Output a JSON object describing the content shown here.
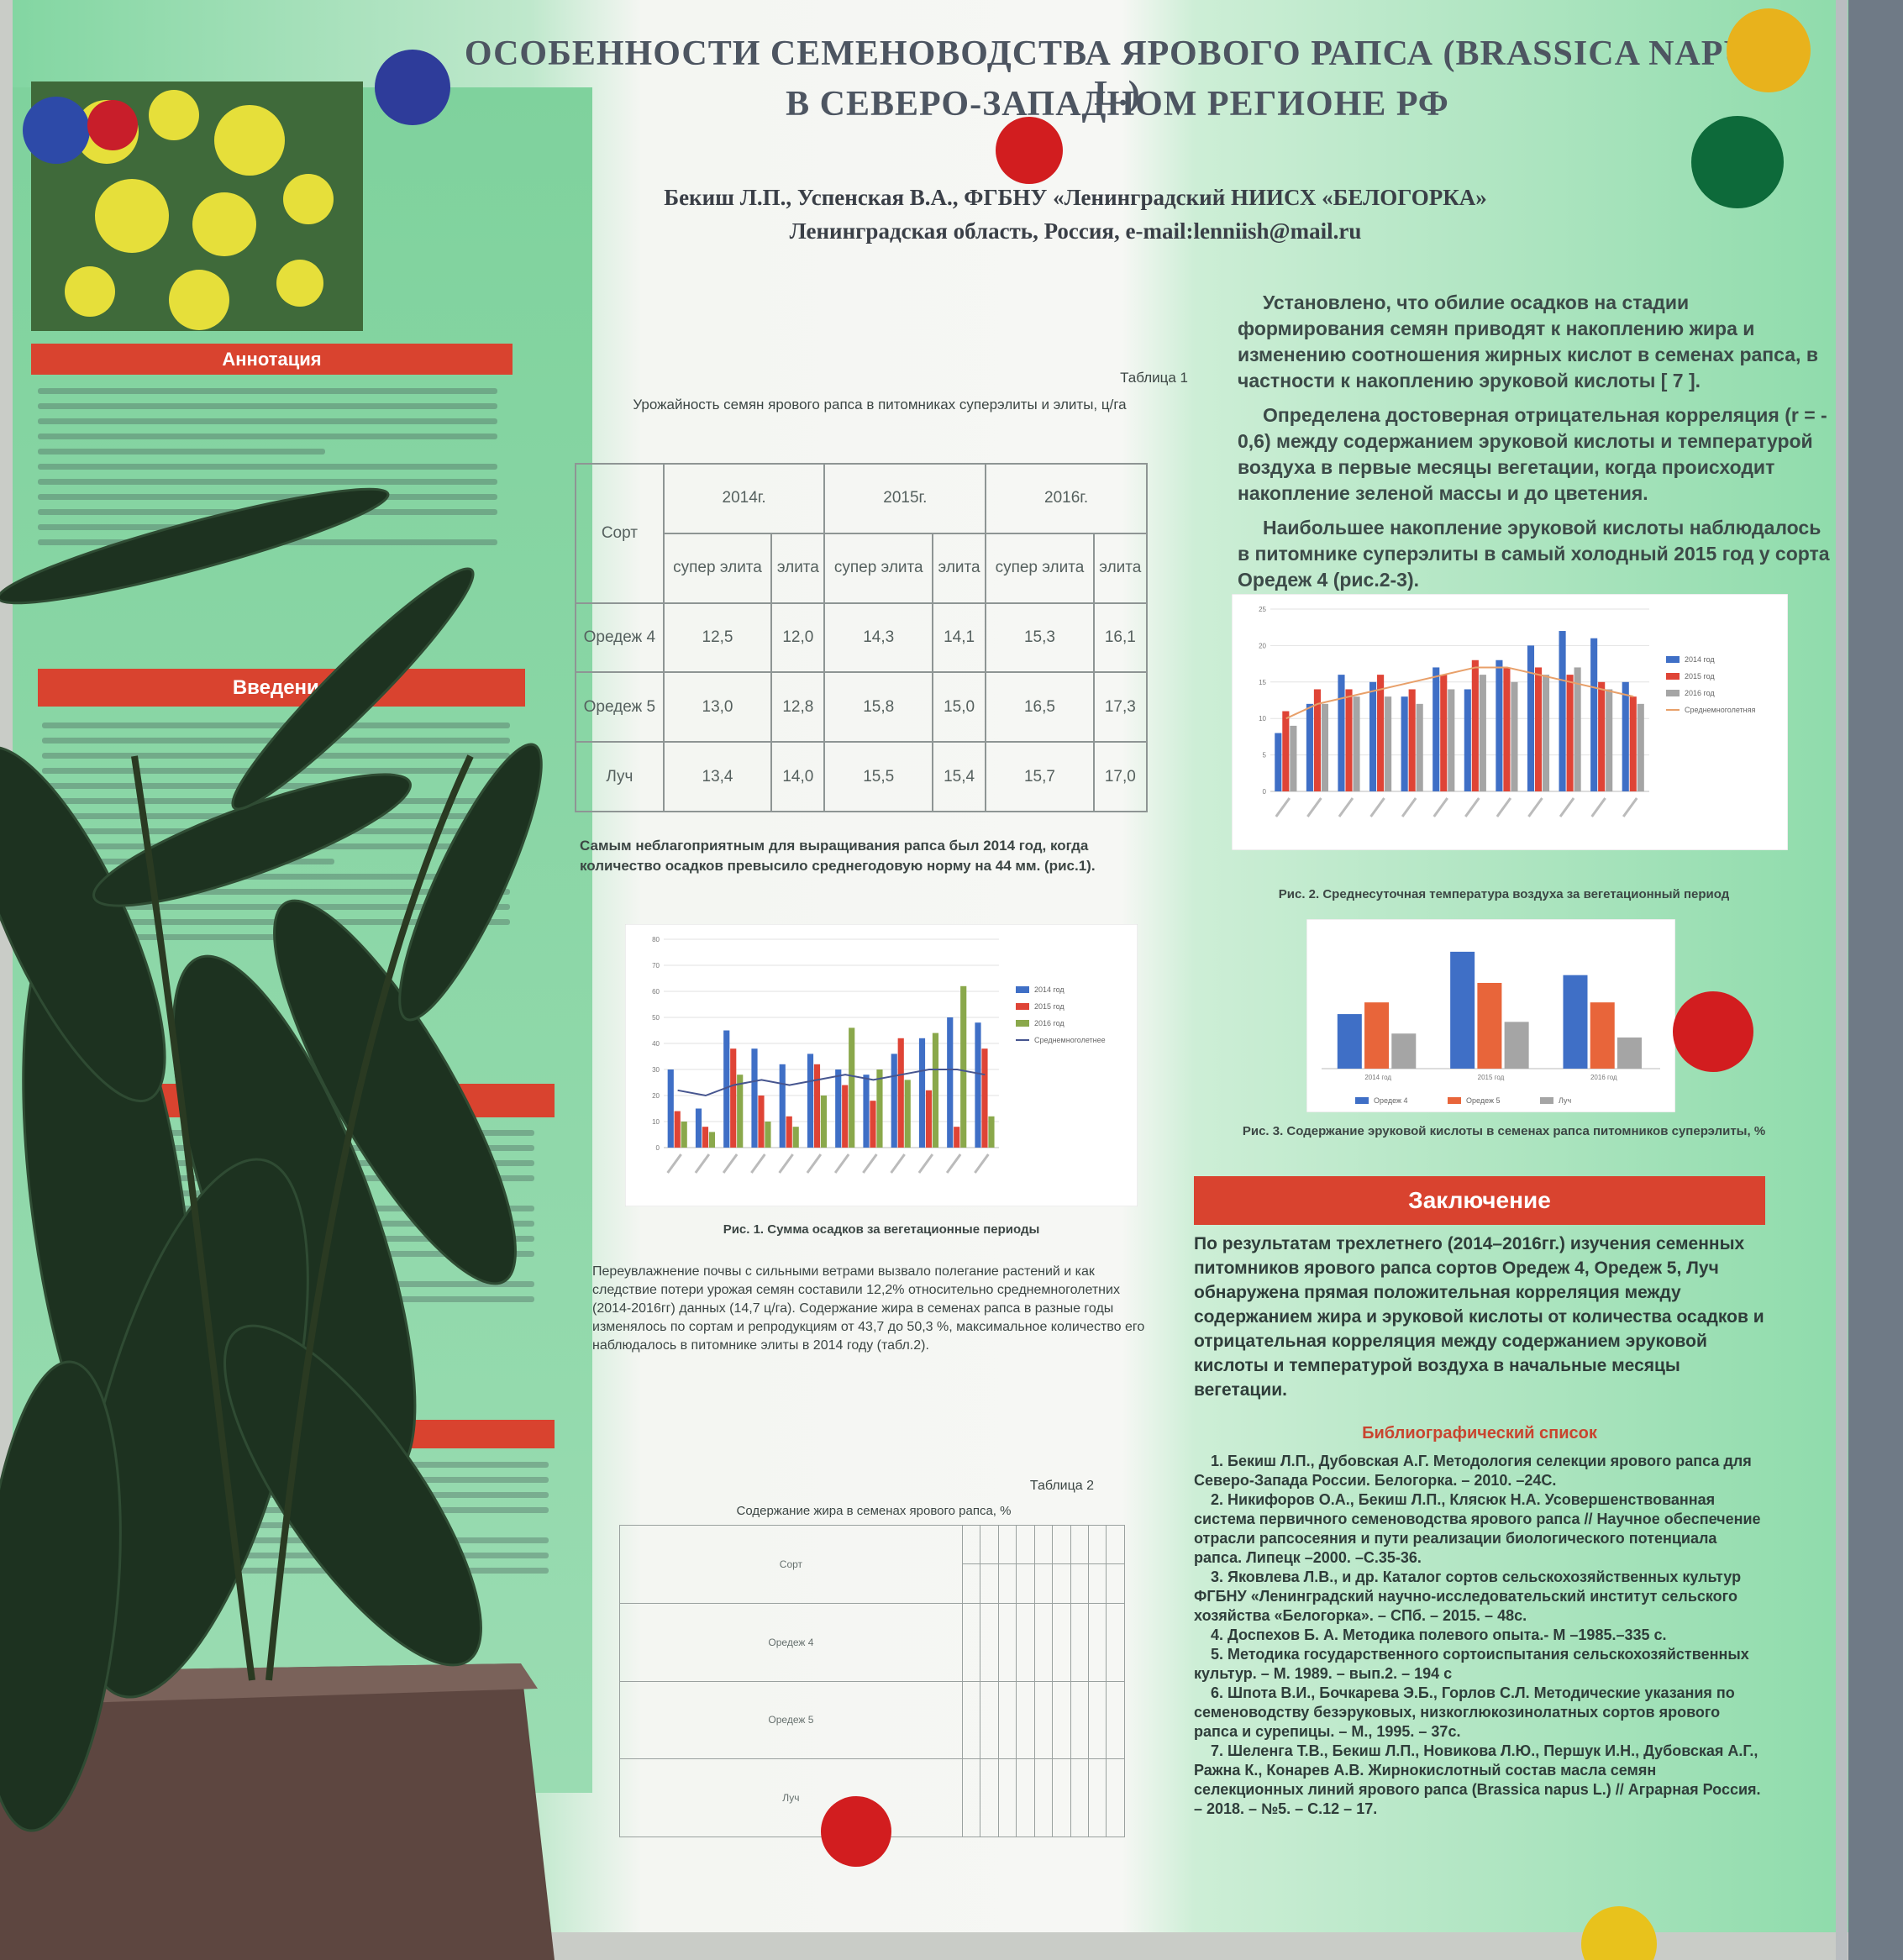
{
  "poster": {
    "title": [
      "ОСОБЕННОСТИ СЕМЕНОВОДСТВА ЯРОВОГО РАПСА  (BRASSICA NAPUS L.)",
      "В СЕВЕРО-ЗАПАДНОМ РЕГИОНЕ РФ"
    ],
    "authors": "Бекиш Л.П., Успенская В.А.,  ФГБНУ «Ленинградский НИИСХ «БЕЛОГОРКА»",
    "affiliation": "Ленинградская область, Россия, e-mail:lenniish@mail.ru",
    "sections": {
      "annotation": "Аннотация",
      "introduction": "Введение"
    },
    "right_text": [
      "Установлено, что обилие осадков на стадии формирования семян приводят к накоплению жира и изменению соотношения жирных кислот в семенах рапса, в частности к накоплению эруковой кислоты [ 7 ].",
      "Определена достоверная отрицательная корреляция (r = - 0,6) между содержанием эруковой кислоты и температурой воздуха в первые месяцы вегетации, когда происходит накопление зеленой массы и до цветения.",
      "Наибольшее накопление эруковой кислоты наблюдалось в питомнике суперэлиты в самый холодный 2015 год у сорта Оредеж 4 (рис.2-3)."
    ],
    "table1": {
      "label": "Таблица 1",
      "caption": "Урожайность семян ярового рапса в питомниках суперэлиты и элиты,  ц/га",
      "corner": "Сорт",
      "years": [
        "2014г.",
        "2015г.",
        "2016г."
      ],
      "subheads": [
        "супер элита",
        "элита"
      ],
      "rows": [
        {
          "name": "Оредеж 4",
          "values": [
            "12,5",
            "12,0",
            "14,3",
            "14,1",
            "15,3",
            "16,1"
          ]
        },
        {
          "name": "Оредеж 5",
          "values": [
            "13,0",
            "12,8",
            "15,8",
            "15,0",
            "16,5",
            "17,3"
          ]
        },
        {
          "name": "Луч",
          "values": [
            "13,4",
            "14,0",
            "15,5",
            "15,4",
            "15,7",
            "17,0"
          ]
        }
      ]
    },
    "middle_text": [
      "Самым неблагоприятным для выращивания рапса был 2014 год, когда количество осадков превысило среднегодовую норму на 44 мм. (рис.1).",
      "Переувлажнение почвы с сильными ветрами вызвало полегание растений и как следствие потери урожая семян составили 12,2% относительно среднемноголетних (2014-2016гг) данных (14,7 ц/га). Содержание жира в семенах рапса в разные годы изменялось по сортам и репродукциям от 43,7 до 50,3 %, максимальное количество его наблюдалось в питомнике элиты в 2014 году (табл.2)."
    ],
    "table2": {
      "label": "Таблица 2",
      "caption": "Содержание жира в семенах ярового рапса, %",
      "corner": "Сорт",
      "rows": [
        "Оредеж 4",
        "Оредеж 5",
        "Луч"
      ]
    },
    "conclusion": {
      "heading": "Заключение",
      "text": "По результатам трехлетнего (2014–2016гг.) изучения семенных питомников ярового рапса сортов Оредеж 4, Оредеж 5, Луч обнаружена прямая положительная корреляция между содержанием жира и эруковой кислоты от количества осадков и отрицательная корреляция между содержанием эруковой кислоты и температурой воздуха в начальные месяцы вегетации."
    },
    "references": {
      "heading": "Библиографический список",
      "items": [
        "1. Бекиш Л.П., Дубовская А.Г. Методология селекции ярового рапса для Северо-Запада России. Белогорка. – 2010. –24С.",
        "2. Никифоров О.А., Бекиш Л.П., Клясюк Н.А. Усовершенствованная система первичного семеноводства ярового рапса // Научное обеспечение отрасли рапсосеяния и пути реализации биологического потенциала рапса. Липецк –2000. –С.35-36.",
        "3. Яковлева Л.В., и др. Каталог сортов сельскохозяйственных культур ФГБНУ «Ленинградский научно-исследовательский институт сельского хозяйства «Белогорка». – СПб. – 2015. – 48с.",
        "4. Доспехов Б. А. Методика полевого опыта.- М –1985.–335 с.",
        "5. Методика государственного сортоиспытания сельскохозяйственных культур. – М. 1989. – вып.2. – 194 с",
        "6. Шпота В.И., Бочкарева Э.Б., Горлов С.Л. Методические указания по семеноводству безэруковых, низкоглюкозинолатных сортов ярового рапса и сурепицы. – М., 1995. – 37с.",
        "7. Шеленга Т.В., Бекиш Л.П., Новикова Л.Ю., Першук И.Н., Дубовская А.Г., Ражна К., Конарев А.В. Жирнокислотный состав масла семян селекционных линий ярового рапса (Brassica napus L.) // Аграрная Россия. – 2018. – №5. – С.12 – 17."
      ]
    }
  },
  "chart_data": [
    {
      "type": "bar",
      "caption": "Рис. 1. Сумма осадков за вегетационные периоды",
      "categories": [
        null,
        null,
        null,
        null,
        null,
        null,
        null,
        null,
        null,
        null,
        null,
        null
      ],
      "ylim": [
        0,
        80
      ],
      "yticks": [
        0,
        10,
        20,
        30,
        40,
        50,
        60,
        70,
        80
      ],
      "grid": true,
      "legend": "right",
      "series": [
        {
          "name": "2014 год",
          "color": "#3f6fc6",
          "values": [
            30,
            15,
            45,
            38,
            32,
            36,
            30,
            28,
            36,
            42,
            50,
            48
          ]
        },
        {
          "name": "2015 год",
          "color": "#df4436",
          "values": [
            14,
            8,
            38,
            20,
            12,
            32,
            24,
            18,
            42,
            22,
            8,
            38
          ]
        },
        {
          "name": "2016 год",
          "color": "#8aa84b",
          "values": [
            10,
            6,
            28,
            10,
            8,
            20,
            46,
            30,
            26,
            44,
            62,
            12
          ]
        },
        {
          "name": "Среднемноголетнее",
          "color": "#46558f",
          "kind": "line",
          "values": [
            22,
            20,
            24,
            26,
            24,
            26,
            28,
            26,
            28,
            30,
            30,
            28
          ]
        }
      ]
    },
    {
      "type": "bar",
      "caption": "Рис. 2. Среднесуточная температура воздуха за вегетационный период",
      "categories": [
        null,
        null,
        null,
        null,
        null,
        null,
        null,
        null,
        null,
        null,
        null,
        null
      ],
      "ylim": [
        0,
        25
      ],
      "yticks": [
        0,
        5,
        10,
        15,
        20,
        25
      ],
      "grid": true,
      "legend": "right",
      "series": [
        {
          "name": "2014 год",
          "color": "#3f6fc6",
          "values": [
            8,
            12,
            16,
            15,
            13,
            17,
            14,
            18,
            20,
            22,
            21,
            15
          ]
        },
        {
          "name": "2015 год",
          "color": "#df4436",
          "values": [
            11,
            14,
            14,
            16,
            14,
            16,
            18,
            17,
            17,
            16,
            15,
            13
          ]
        },
        {
          "name": "2016 год",
          "color": "#a5a5a5",
          "values": [
            9,
            12,
            13,
            13,
            12,
            14,
            16,
            15,
            16,
            17,
            14,
            12
          ]
        },
        {
          "name": "Среднемноголетняя",
          "color": "#e8a06a",
          "kind": "line",
          "values": [
            10,
            12,
            13,
            14,
            15,
            16,
            17,
            17,
            16,
            15,
            14,
            13
          ]
        }
      ]
    },
    {
      "type": "bar",
      "caption": "Рис. 3. Содержание эруковой кислоты в семенах рапса питомников суперэлиты, %",
      "categories": [
        "2014 год",
        "2015 год",
        "2016 год"
      ],
      "grid": false,
      "legend": "bottom",
      "series": [
        {
          "name": "Оредеж 4",
          "color": "#3f6fc6",
          "values": [
            7,
            15,
            12
          ]
        },
        {
          "name": "Оредеж 5",
          "color": "#e8653a",
          "values": [
            8.5,
            11,
            8.5
          ]
        },
        {
          "name": "Луч",
          "color": "#a5a5a5",
          "values": [
            4.5,
            6,
            4
          ]
        }
      ]
    }
  ]
}
